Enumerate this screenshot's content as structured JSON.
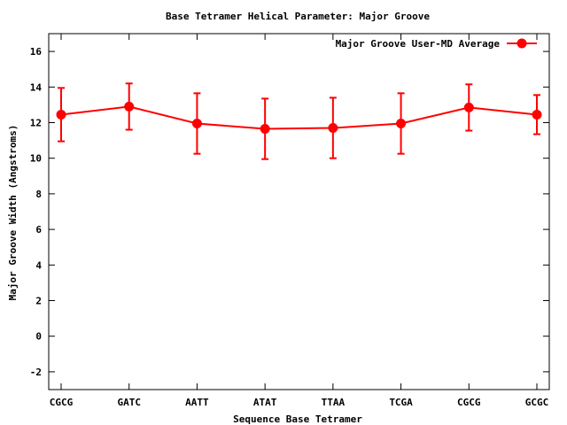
{
  "chart_data": {
    "type": "line",
    "title": "Base Tetramer Helical Parameter: Major Groove",
    "xlabel": "Sequence Base Tetramer",
    "ylabel": "Major Groove Width (Angstroms)",
    "categories": [
      "CGCG",
      "GATC",
      "AATT",
      "ATAT",
      "TTAA",
      "TCGA",
      "CGCG",
      "GCGC"
    ],
    "ylim": [
      -3,
      17
    ],
    "yticks": [
      -2,
      0,
      2,
      4,
      6,
      8,
      10,
      12,
      14,
      16
    ],
    "grid": false,
    "legend_position": "top-right",
    "series": [
      {
        "name": "Major Groove User-MD Average",
        "color": "#ff0000",
        "values": [
          12.45,
          12.9,
          11.95,
          11.65,
          11.7,
          11.95,
          12.85,
          12.45
        ],
        "error_low": [
          10.95,
          11.6,
          10.25,
          9.95,
          10.0,
          10.25,
          11.55,
          11.35
        ],
        "error_high": [
          13.95,
          14.2,
          13.65,
          13.35,
          13.4,
          13.65,
          14.15,
          13.55
        ]
      }
    ]
  }
}
